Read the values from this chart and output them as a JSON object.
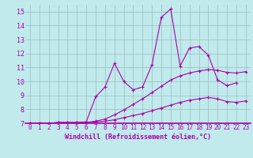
{
  "xlabel": "Windchill (Refroidissement éolien,°C)",
  "xlim": [
    -0.5,
    23.5
  ],
  "ylim": [
    7,
    15.5
  ],
  "yticks": [
    7,
    8,
    9,
    10,
    11,
    12,
    13,
    14,
    15
  ],
  "xticks": [
    0,
    1,
    2,
    3,
    4,
    5,
    6,
    7,
    8,
    9,
    10,
    11,
    12,
    13,
    14,
    15,
    16,
    17,
    18,
    19,
    20,
    21,
    22,
    23
  ],
  "background_color": "#c0eaec",
  "grid_color": "#9bbcbe",
  "line_color": "#aa00aa",
  "series": [
    [
      7.0,
      7.0,
      7.0,
      7.05,
      7.05,
      7.05,
      7.05,
      7.1,
      7.15,
      7.25,
      7.4,
      7.55,
      7.7,
      7.9,
      8.1,
      8.3,
      8.5,
      8.65,
      8.75,
      8.85,
      8.75,
      8.55,
      8.5,
      8.6
    ],
    [
      7.0,
      7.0,
      7.0,
      7.05,
      7.05,
      7.05,
      7.05,
      7.15,
      7.3,
      7.6,
      7.95,
      8.35,
      8.75,
      9.2,
      9.65,
      10.1,
      10.4,
      10.6,
      10.75,
      10.85,
      10.8,
      10.65,
      10.6,
      10.7
    ],
    [
      7.0,
      7.0,
      7.0,
      7.05,
      7.05,
      7.05,
      7.1,
      8.9,
      9.6,
      11.3,
      10.0,
      9.4,
      9.6,
      11.2,
      14.6,
      15.2,
      11.1,
      12.4,
      12.5,
      11.9,
      10.1,
      9.7,
      9.9,
      null
    ]
  ],
  "marker": "+",
  "tick_fontsize": 5.5,
  "xlabel_fontsize": 6.0
}
